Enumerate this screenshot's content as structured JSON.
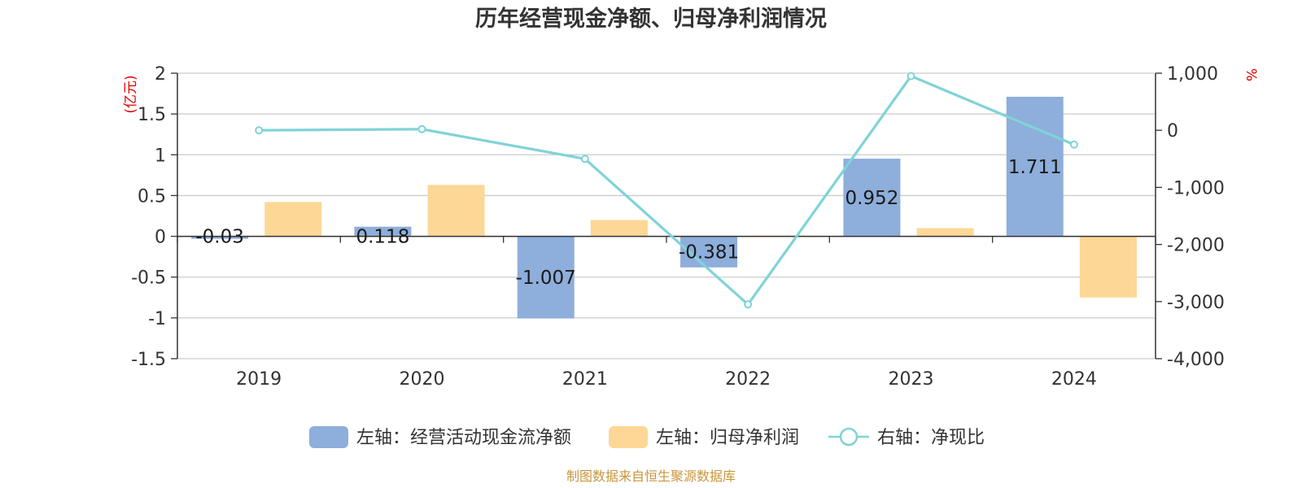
{
  "chart_data": {
    "type": "bar",
    "title": "历年经营现金净额、归母净利润情况",
    "categories": [
      "2019",
      "2020",
      "2021",
      "2022",
      "2023",
      "2024"
    ],
    "left_axis": {
      "unit_label": "(亿元)",
      "ylim": [
        -1.5,
        2
      ],
      "ticks": [
        2,
        1.5,
        1,
        0.5,
        0,
        -0.5,
        -1,
        -1.5
      ],
      "tick_labels": [
        "2",
        "1.5",
        "1",
        "0.5",
        "0",
        "-0.5",
        "-1",
        "-1.5"
      ]
    },
    "right_axis": {
      "unit_label": "%",
      "ylim": [
        -4000,
        1000
      ],
      "ticks": [
        1000,
        0,
        -1000,
        -2000,
        -3000,
        -4000
      ],
      "tick_labels": [
        "1,000",
        "0",
        "-1,000",
        "-2,000",
        "-3,000",
        "-4,000"
      ]
    },
    "series": [
      {
        "name": "左轴：经营活动现金流净额",
        "type": "bar",
        "axis": "left",
        "color": "#8eaedb",
        "values": [
          -0.03,
          0.118,
          -1.007,
          -0.381,
          0.952,
          1.711
        ],
        "labels": [
          "-0.03",
          "0.118",
          "-1.007",
          "-0.381",
          "0.952",
          "1.711"
        ]
      },
      {
        "name": "左轴：归母净利润",
        "type": "bar",
        "axis": "left",
        "color": "#fdd796",
        "values": [
          0.42,
          0.63,
          0.2,
          0.01,
          0.1,
          -0.75
        ]
      },
      {
        "name": "右轴：净现比",
        "type": "line",
        "axis": "right",
        "color": "#7fd3d8",
        "values": [
          0,
          20,
          -500,
          -3050,
          950,
          -250
        ]
      }
    ],
    "grid": true,
    "legend_position": "bottom"
  },
  "source_note": "制图数据来自恒生聚源数据库"
}
